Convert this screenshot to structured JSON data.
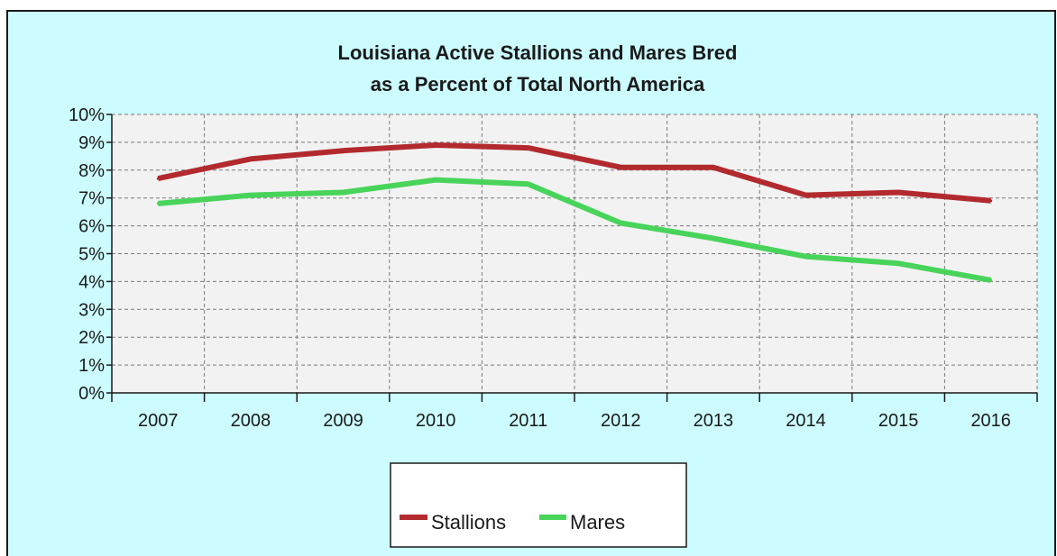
{
  "chart_data": {
    "type": "line",
    "title_lines": [
      "Louisiana Active Stallions and Mares Bred",
      "as a Percent of Total North America"
    ],
    "categories": [
      "2007",
      "2008",
      "2009",
      "2010",
      "2011",
      "2012",
      "2013",
      "2014",
      "2015",
      "2016"
    ],
    "y_ticks": [
      "0%",
      "1%",
      "2%",
      "3%",
      "4%",
      "5%",
      "6%",
      "7%",
      "8%",
      "9%",
      "10%"
    ],
    "ylim": [
      0,
      10
    ],
    "y_unit": "%",
    "grid": true,
    "legend_position": "bottom",
    "series": [
      {
        "name": "Stallions",
        "color": "#b22a2e",
        "values": [
          7.7,
          8.4,
          8.7,
          8.9,
          8.8,
          8.1,
          8.1,
          7.1,
          7.2,
          6.9
        ]
      },
      {
        "name": "Mares",
        "color": "#48d45a",
        "values": [
          6.8,
          7.1,
          7.2,
          7.65,
          7.5,
          6.1,
          5.55,
          4.9,
          4.65,
          4.05
        ]
      }
    ]
  },
  "colors": {
    "background": "#ccfcff",
    "plot_area": "#f2f2f2",
    "grid": "#7a7a7a",
    "text": "#1a1a1a"
  }
}
